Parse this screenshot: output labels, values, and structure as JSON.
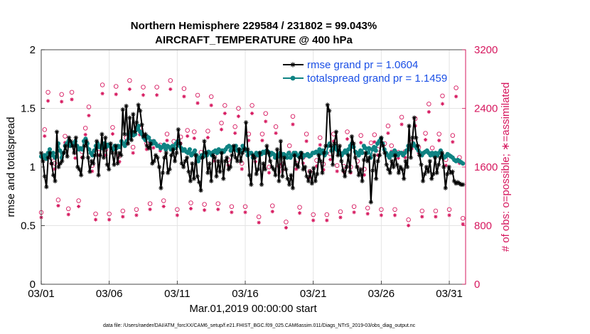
{
  "chart_data": {
    "type": "line",
    "title_line1": "Northern Hemisphere 229584 / 231802 = 99.043%",
    "title_line2": "AIRCRAFT_TEMPERATURE @ 400 hPa",
    "xlabel": "Mar.01,2019 00:00:00 start",
    "ylabel_left": "rmse and totalspread",
    "ylabel_right": "# of obs: o=possible; ∗=assimilated",
    "footnote": "data file: /Users/raeder/DAI/ATM_forcXX/CAM6_setup/f.e21.FHIST_BGC.f09_025.CAM6assim.011/Diags_NTrS_2019-03/obs_diag_output.nc",
    "xlim": [
      1,
      32.2
    ],
    "ylim_left": [
      0,
      2
    ],
    "ylim_right": [
      0,
      3200
    ],
    "grid": true,
    "x_ticks": [
      1,
      6,
      11,
      16,
      21,
      26,
      31
    ],
    "x_tick_labels": [
      "03/01",
      "03/06",
      "03/11",
      "03/16",
      "03/21",
      "03/26",
      "03/31"
    ],
    "y_left_ticks": [
      0,
      0.5,
      1,
      1.5,
      2
    ],
    "y_left_tick_labels": [
      "0",
      "0.5",
      "1",
      "1.5",
      "2"
    ],
    "y_right_ticks": [
      0,
      800,
      1600,
      2400,
      3200
    ],
    "y_right_tick_labels": [
      "0",
      "800",
      "1600",
      "2400",
      "3200"
    ],
    "legend_position": "top-right",
    "colors": {
      "rmse": "#000000",
      "totalspread": "#0f8383",
      "obs_count": "#d6175e",
      "legend_text": "#1a4fe6"
    },
    "series": [
      {
        "name": "rmse grand pr = 1.0604",
        "axis": "left",
        "marker": "asterisk",
        "values": [
          1.12,
          1.05,
          0.92,
          0.83,
          1.08,
          1.12,
          1.03,
          0.93,
          0.88,
          1.3,
          1.0,
          1.03,
          1.05,
          1.12,
          1.18,
          1.09,
          1.25,
          1.22,
          1.18,
          1.12,
          1.25,
          1.0,
          0.98,
          0.93,
          1.08,
          1.18,
          1.22,
          1.08,
          0.96,
          1.05,
          1.03,
          1.1,
          1.22,
          0.93,
          1.1,
          1.28,
          1.08,
          1.25,
          1.02,
          0.98,
          1.2,
          1.12,
          1.02,
          1.18,
          1.03,
          1.12,
          1.1,
          1.49,
          1.28,
          1.52,
          1.2,
          1.42,
          1.23,
          1.45,
          1.3,
          1.38,
          1.53,
          1.48,
          1.36,
          1.26,
          1.28,
          1.18,
          1.16,
          1.2,
          1.03,
          1.05,
          1.1,
          1.08,
          1.0,
          0.82,
          0.95,
          1.08,
          1.12,
          0.95,
          0.98,
          1.1,
          1.15,
          1.05,
          1.12,
          1.32,
          1.2,
          1.03,
          1.0,
          1.05,
          1.08,
          0.96,
          0.88,
          1.03,
          0.9,
          1.1,
          0.92,
          0.87,
          0.8,
          1.08,
          1.22,
          1.12,
          0.95,
          1.03,
          0.88,
          1.1,
          1.08,
          0.92,
          1.05,
          0.96,
          1.12,
          0.9,
          1.05,
          1.08,
          0.98,
          1.0,
          1.1,
          1.18,
          1.08,
          1.05,
          1.15,
          1.05,
          1.12,
          1.15,
          1.38,
          1.15,
          0.93,
          0.85,
          1.1,
          1.08,
          0.94,
          0.98,
          1.12,
          0.85,
          1.03,
          0.98,
          1.18,
          1.12,
          1.05,
          1.0,
          0.98,
          0.93,
          1.15,
          0.88,
          1.22,
          0.92,
          1.08,
          0.98,
          0.9,
          0.85,
          0.93,
          0.82,
          1.1,
          1.02,
          1.0,
          1.08,
          1.12,
          0.98,
          1.0,
          0.92,
          0.88,
          0.96,
          0.86,
          0.99,
          0.88,
          0.94,
          1.1,
          1.05,
          0.95,
          1.12,
          1.18,
          1.53,
          1.48,
          1.18,
          1.02,
          1.2,
          1.3,
          1.1,
          1.18,
          1.05,
          0.97,
          0.92,
          1.0,
          1.1,
          0.96,
          1.26,
          1.2,
          1.08,
          1.0,
          0.93,
          0.98,
          0.88,
          1.06,
          1.12,
          1.05,
          1.08,
          0.7,
          0.97,
          1.1,
          0.9,
          1.05,
          1.1,
          1.25,
          1.18,
          1.12,
          1.02,
          0.98,
          0.95,
          1.05,
          1.0,
          1.1,
          1.02,
          0.95,
          1.0,
          0.98,
          0.9,
          1.05,
          1.0,
          1.35,
          1.08,
          1.25,
          1.42,
          1.25,
          1.18,
          1.1,
          1.02,
          0.88,
          0.94,
          1.0,
          0.96,
          1.05,
          0.9,
          0.94,
          1.08,
          0.95,
          1.02,
          1.08,
          1.12,
          1.0,
          0.82,
          0.94,
          1.0,
          0.95,
          0.96,
          0.88,
          0.86,
          0.87,
          0.86,
          0.85,
          0.85
        ]
      },
      {
        "name": "totalspread grand pr = 1.1459",
        "axis": "left",
        "marker": "dot",
        "values": [
          1.09,
          1.08,
          1.1,
          1.07,
          1.12,
          1.15,
          1.1,
          1.12,
          1.08,
          1.09,
          1.2,
          1.14,
          1.08,
          1.12,
          1.18,
          1.2,
          1.22,
          1.18,
          1.2,
          1.19,
          1.22,
          1.18,
          1.15,
          1.16,
          1.15,
          1.22,
          1.24,
          1.2,
          1.15,
          1.12,
          1.1,
          1.14,
          1.18,
          1.2,
          1.17,
          1.18,
          1.16,
          1.2,
          1.17,
          1.19,
          1.18,
          1.16,
          1.15,
          1.18,
          1.16,
          1.18,
          1.17,
          1.22,
          1.2,
          1.18,
          1.22,
          1.28,
          1.25,
          1.3,
          1.27,
          1.28,
          1.32,
          1.35,
          1.3,
          1.28,
          1.25,
          1.23,
          1.26,
          1.25,
          1.22,
          1.2,
          1.22,
          1.2,
          1.18,
          1.18,
          1.16,
          1.17,
          1.19,
          1.15,
          1.18,
          1.17,
          1.15,
          1.18,
          1.16,
          1.2,
          1.22,
          1.18,
          1.16,
          1.14,
          1.15,
          1.13,
          1.12,
          1.15,
          1.1,
          1.12,
          1.14,
          1.1,
          1.05,
          1.08,
          1.1,
          1.09,
          1.12,
          1.1,
          1.13,
          1.12,
          1.1,
          1.13,
          1.14,
          1.12,
          1.15,
          1.13,
          1.14,
          1.13,
          1.15,
          1.17,
          1.18,
          1.14,
          1.17,
          1.15,
          1.18,
          1.14,
          1.15,
          1.13,
          1.18,
          1.16,
          1.14,
          1.1,
          1.12,
          1.12,
          1.08,
          1.1,
          1.12,
          1.1,
          1.12,
          1.11,
          1.13,
          1.12,
          1.14,
          1.13,
          1.1,
          1.12,
          1.11,
          1.08,
          1.1,
          1.09,
          1.12,
          1.1,
          1.11,
          1.1,
          1.08,
          1.12,
          1.08,
          1.1,
          1.12,
          1.12,
          1.1,
          1.09,
          1.12,
          1.08,
          1.1,
          1.1,
          1.11,
          1.09,
          1.1,
          1.12,
          1.12,
          1.13,
          1.12,
          1.15,
          1.12,
          1.14,
          1.1,
          1.12,
          1.18,
          1.2,
          1.14,
          1.16,
          1.18,
          1.15,
          1.13,
          1.12,
          1.1,
          1.12,
          1.14,
          1.12,
          1.15,
          1.18,
          1.2,
          1.17,
          1.13,
          1.12,
          1.1,
          1.14,
          1.12,
          1.18,
          1.16,
          1.12,
          1.16,
          1.08,
          1.15,
          1.17,
          1.14,
          1.2,
          1.22,
          1.24,
          1.2,
          1.15,
          1.12,
          1.1,
          1.08,
          1.12,
          1.1,
          1.14,
          1.12,
          1.1,
          1.12,
          1.12,
          1.1,
          1.12,
          1.14,
          1.18,
          1.15,
          1.18,
          1.2,
          1.18,
          1.16,
          1.14,
          1.12,
          1.1,
          1.12,
          1.13,
          1.14,
          1.12,
          1.1,
          1.12,
          1.1,
          1.12,
          1.1,
          1.12,
          1.14,
          1.1,
          1.08,
          1.09,
          1.11,
          1.1,
          1.09,
          1.08,
          1.06,
          1.05,
          1.06,
          1.05,
          1.04,
          1.03
        ]
      },
      {
        "name": "obs possible",
        "axis": "right",
        "marker": "circle",
        "x": [
          1.0,
          1.25,
          1.5,
          1.75,
          2.0,
          2.25,
          2.5,
          2.75,
          3.0,
          3.25,
          3.5,
          3.75,
          4.0,
          4.25,
          4.5,
          4.75,
          5.0,
          5.25,
          5.5,
          5.75,
          6.0,
          6.25,
          6.5,
          6.75,
          7.0,
          7.25,
          7.5,
          7.75,
          8.0,
          8.25,
          8.5,
          8.75,
          9.0,
          9.25,
          9.5,
          9.75,
          10.0,
          10.25,
          10.5,
          10.75,
          11.0,
          11.25,
          11.5,
          11.75,
          12.0,
          12.25,
          12.5,
          12.75,
          13.0,
          13.25,
          13.5,
          13.75,
          14.0,
          14.25,
          14.5,
          14.75,
          15.0,
          15.25,
          15.5,
          15.75,
          16.0,
          16.25,
          16.5,
          16.75,
          17.0,
          17.25,
          17.5,
          17.75,
          18.0,
          18.25,
          18.5,
          18.75,
          19.0,
          19.25,
          19.5,
          19.75,
          20.0,
          20.25,
          20.5,
          20.75,
          21.0,
          21.25,
          21.5,
          21.75,
          22.0,
          22.25,
          22.5,
          22.75,
          23.0,
          23.25,
          23.5,
          23.75,
          24.0,
          24.25,
          24.5,
          24.75,
          25.0,
          25.25,
          25.5,
          25.75,
          26.0,
          26.25,
          26.5,
          26.75,
          27.0,
          27.25,
          27.5,
          27.75,
          28.0,
          28.25,
          28.5,
          28.75,
          29.0,
          29.25,
          29.5,
          29.75,
          30.0,
          30.25,
          30.5,
          30.75,
          31.0,
          31.25,
          31.5,
          31.75,
          32.0
        ],
        "values": [
          980,
          2110,
          2620,
          1720,
          1650,
          1150,
          2590,
          2020,
          1030,
          2620,
          1800,
          1140,
          1810,
          2130,
          2420,
          1620,
          960,
          1850,
          2720,
          1840,
          960,
          2140,
          2700,
          1750,
          1000,
          2000,
          2780,
          1870,
          1020,
          2130,
          2690,
          1920,
          1100,
          1950,
          2690,
          1900,
          1140,
          2050,
          2780,
          1950,
          1020,
          2010,
          2670,
          2100,
          1110,
          2080,
          2580,
          1800,
          1090,
          2090,
          2560,
          1760,
          1100,
          2200,
          2440,
          1700,
          1060,
          2150,
          2400,
          1650,
          1060,
          2050,
          2440,
          1750,
          920,
          2050,
          2330,
          1600,
          1070,
          2150,
          1610,
          1640,
          850,
          1890,
          2290,
          1650,
          1050,
          1730,
          2050,
          1540,
          950,
          1690,
          2000,
          1640,
          950,
          1780,
          2050,
          1620,
          990,
          1610,
          2080,
          1600,
          1060,
          1680,
          2030,
          1570,
          1040,
          1930,
          2040,
          1840,
          1020,
          1920,
          2160,
          1890,
          1020,
          1800,
          2280,
          1810,
          880,
          1940,
          2260,
          1870,
          1000,
          2060,
          2460,
          1860,
          1000,
          2050,
          2570,
          1700,
          1020,
          2030,
          2680,
          1730,
          900
        ]
      },
      {
        "name": "obs assimilated",
        "axis": "right",
        "marker": "star",
        "x": [
          1.0,
          1.25,
          1.5,
          1.75,
          2.0,
          2.25,
          2.5,
          2.75,
          3.0,
          3.25,
          3.5,
          3.75,
          4.0,
          4.25,
          4.5,
          4.75,
          5.0,
          5.25,
          5.5,
          5.75,
          6.0,
          6.25,
          6.5,
          6.75,
          7.0,
          7.25,
          7.5,
          7.75,
          8.0,
          8.25,
          8.5,
          8.75,
          9.0,
          9.25,
          9.5,
          9.75,
          10.0,
          10.25,
          10.5,
          10.75,
          11.0,
          11.25,
          11.5,
          11.75,
          12.0,
          12.25,
          12.5,
          12.75,
          13.0,
          13.25,
          13.5,
          13.75,
          14.0,
          14.25,
          14.5,
          14.75,
          15.0,
          15.25,
          15.5,
          15.75,
          16.0,
          16.25,
          16.5,
          16.75,
          17.0,
          17.25,
          17.5,
          17.75,
          18.0,
          18.25,
          18.5,
          18.75,
          19.0,
          19.25,
          19.5,
          19.75,
          20.0,
          20.25,
          20.5,
          20.75,
          21.0,
          21.25,
          21.5,
          21.75,
          22.0,
          22.25,
          22.5,
          22.75,
          23.0,
          23.25,
          23.5,
          23.75,
          24.0,
          24.25,
          24.5,
          24.75,
          25.0,
          25.25,
          25.5,
          25.75,
          26.0,
          26.25,
          26.5,
          26.75,
          27.0,
          27.25,
          27.5,
          27.75,
          28.0,
          28.25,
          28.5,
          28.75,
          29.0,
          29.25,
          29.5,
          29.75,
          30.0,
          30.25,
          30.5,
          30.75,
          31.0,
          31.25,
          31.5,
          31.75,
          32.0
        ],
        "values": [
          970,
          2080,
          2560,
          1700,
          1630,
          1130,
          2550,
          1990,
          1010,
          2580,
          1780,
          1120,
          1790,
          2100,
          2360,
          1600,
          940,
          1820,
          2660,
          1820,
          940,
          2110,
          2650,
          1730,
          980,
          1970,
          2720,
          1850,
          1000,
          2100,
          2640,
          1900,
          1080,
          1920,
          2640,
          1880,
          1120,
          2020,
          2720,
          1930,
          1000,
          1980,
          2620,
          2080,
          1090,
          2050,
          2530,
          1780,
          1070,
          2060,
          2500,
          1740,
          1080,
          2170,
          2390,
          1680,
          1040,
          2120,
          2350,
          1630,
          1040,
          2020,
          2390,
          1730,
          900,
          2020,
          2280,
          1580,
          1050,
          2120,
          1590,
          1620,
          830,
          1860,
          2240,
          1630,
          1030,
          1710,
          2010,
          1520,
          930,
          1670,
          1960,
          1620,
          930,
          1760,
          2010,
          1600,
          970,
          1590,
          2040,
          1580,
          1040,
          1660,
          1990,
          1550,
          1020,
          1900,
          2000,
          1820,
          1000,
          1890,
          2120,
          1870,
          1000,
          1780,
          2240,
          1790,
          860,
          1910,
          2220,
          1850,
          980,
          2030,
          2410,
          1840,
          980,
          2020,
          2520,
          1680,
          1000,
          2000,
          2620,
          1710,
          880
        ]
      }
    ]
  }
}
